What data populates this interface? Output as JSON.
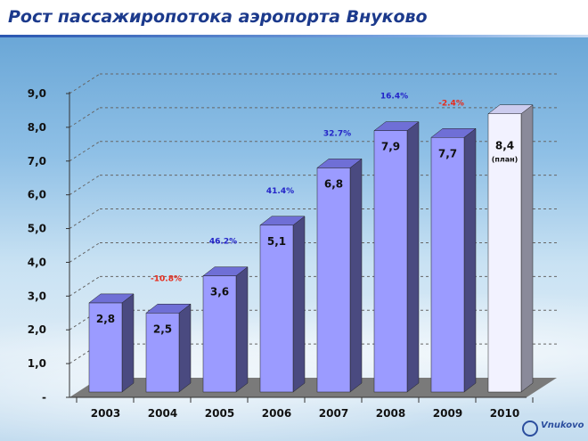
{
  "header": {
    "title": "Рост пассажиропотока аэропорта Внуково"
  },
  "logo": {
    "text": "Vnukovo",
    "icon": "vnukovo-logo-icon"
  },
  "colors": {
    "bar_front": "#9b9bff",
    "bar_side": "#4a4a80",
    "bar_top": "#6f6fd6",
    "plan_front": "#f2f2ff",
    "plan_side": "#8a8a9a",
    "plan_top": "#ccccee",
    "positive_pct": "#2323c8",
    "negative_pct": "#e82a1a",
    "floor": "#7a7a7a"
  },
  "chart_data": {
    "type": "bar",
    "title": "Рост пассажиропотока аэропорта Внуково",
    "categories": [
      "2003",
      "2004",
      "2005",
      "2006",
      "2007",
      "2008",
      "2009",
      "2010"
    ],
    "values": [
      2.8,
      2.5,
      3.6,
      5.1,
      6.8,
      7.9,
      7.7,
      8.4
    ],
    "value_labels": [
      "2,8",
      "2,5",
      "3,6",
      "5,1",
      "6,8",
      "7,9",
      "7,7",
      "8,4"
    ],
    "plan_index": 7,
    "plan_note": "(план)",
    "growth_labels": [
      "",
      "-10.8%",
      "46.2%",
      "41.4%",
      "32.7%",
      "16.4%",
      "-2.4%",
      ""
    ],
    "growth_sign": [
      "",
      "neg",
      "pos",
      "pos",
      "pos",
      "pos",
      "neg",
      ""
    ],
    "y_ticks": [
      "-",
      "1,0",
      "2,0",
      "3,0",
      "4,0",
      "5,0",
      "6,0",
      "7,0",
      "8,0",
      "9,0"
    ],
    "ylim": [
      0,
      9
    ],
    "grid": true,
    "style": "3d-bar"
  }
}
